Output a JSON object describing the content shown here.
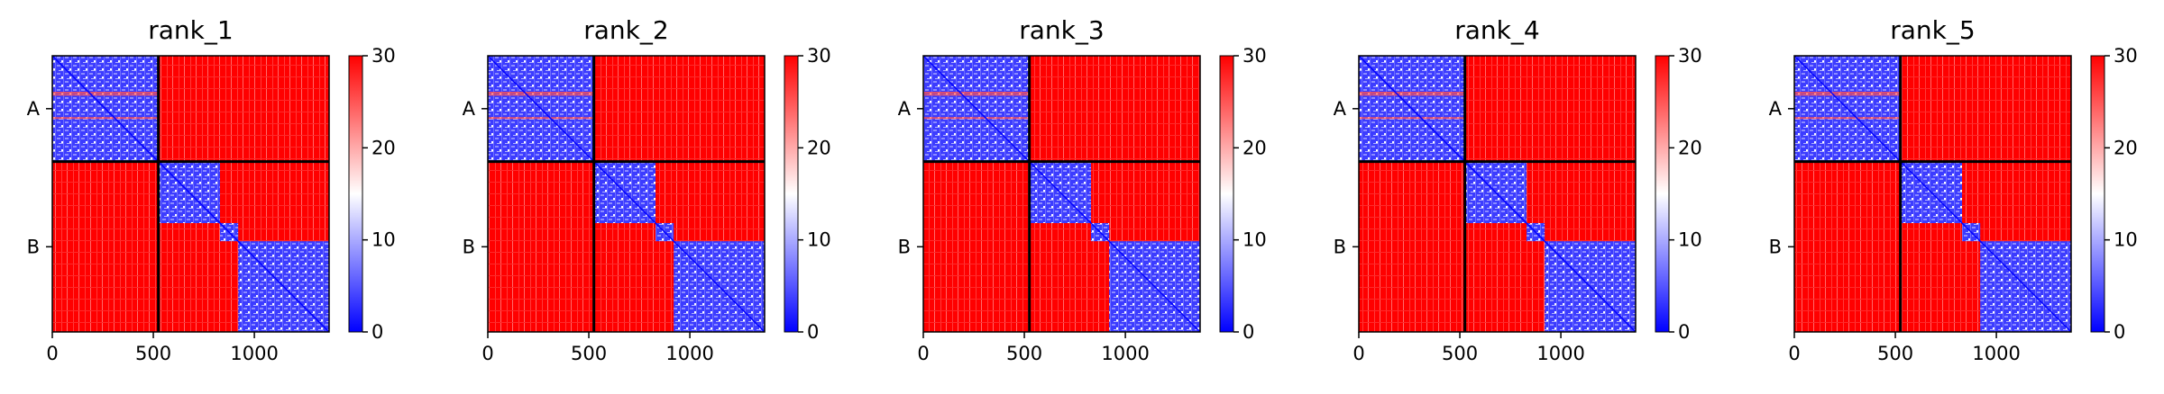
{
  "colors": {
    "low": "#0000ff",
    "mid": "#ffffff",
    "high": "#ff0000",
    "frame": "#000000"
  },
  "chart_data": [
    {
      "type": "heatmap",
      "title": "rank_1",
      "xticks": [
        "0",
        "500",
        "1000"
      ],
      "x_tick_values": [
        0,
        500,
        1000
      ],
      "xlim": [
        0,
        1370
      ],
      "yticks": [
        "A",
        "B"
      ],
      "chains": [
        {
          "name": "A",
          "start": 0,
          "end": 525
        },
        {
          "name": "B",
          "start": 525,
          "end": 1370
        }
      ],
      "colorbar": {
        "min": 0,
        "max": 30,
        "ticks": [
          "0",
          "10",
          "20",
          "30"
        ]
      },
      "domains": [
        [
          0,
          525
        ],
        [
          525,
          830
        ],
        [
          830,
          920
        ],
        [
          920,
          1370
        ]
      ]
    },
    {
      "type": "heatmap",
      "title": "rank_2",
      "xticks": [
        "0",
        "500",
        "1000"
      ],
      "x_tick_values": [
        0,
        500,
        1000
      ],
      "xlim": [
        0,
        1370
      ],
      "yticks": [
        "A",
        "B"
      ],
      "chains": [
        {
          "name": "A",
          "start": 0,
          "end": 525
        },
        {
          "name": "B",
          "start": 525,
          "end": 1370
        }
      ],
      "colorbar": {
        "min": 0,
        "max": 30,
        "ticks": [
          "0",
          "10",
          "20",
          "30"
        ]
      },
      "domains": [
        [
          0,
          525
        ],
        [
          525,
          830
        ],
        [
          830,
          920
        ],
        [
          920,
          1370
        ]
      ]
    },
    {
      "type": "heatmap",
      "title": "rank_3",
      "xticks": [
        "0",
        "500",
        "1000"
      ],
      "x_tick_values": [
        0,
        500,
        1000
      ],
      "xlim": [
        0,
        1370
      ],
      "yticks": [
        "A",
        "B"
      ],
      "chains": [
        {
          "name": "A",
          "start": 0,
          "end": 525
        },
        {
          "name": "B",
          "start": 525,
          "end": 1370
        }
      ],
      "colorbar": {
        "min": 0,
        "max": 30,
        "ticks": [
          "0",
          "10",
          "20",
          "30"
        ]
      },
      "domains": [
        [
          0,
          525
        ],
        [
          525,
          830
        ],
        [
          830,
          920
        ],
        [
          920,
          1370
        ]
      ]
    },
    {
      "type": "heatmap",
      "title": "rank_4",
      "xticks": [
        "0",
        "500",
        "1000"
      ],
      "x_tick_values": [
        0,
        500,
        1000
      ],
      "xlim": [
        0,
        1370
      ],
      "yticks": [
        "A",
        "B"
      ],
      "chains": [
        {
          "name": "A",
          "start": 0,
          "end": 525
        },
        {
          "name": "B",
          "start": 525,
          "end": 1370
        }
      ],
      "colorbar": {
        "min": 0,
        "max": 30,
        "ticks": [
          "0",
          "10",
          "20",
          "30"
        ]
      },
      "domains": [
        [
          0,
          525
        ],
        [
          525,
          830
        ],
        [
          830,
          920
        ],
        [
          920,
          1370
        ]
      ]
    },
    {
      "type": "heatmap",
      "title": "rank_5",
      "xticks": [
        "0",
        "500",
        "1000"
      ],
      "x_tick_values": [
        0,
        500,
        1000
      ],
      "xlim": [
        0,
        1370
      ],
      "yticks": [
        "A",
        "B"
      ],
      "chains": [
        {
          "name": "A",
          "start": 0,
          "end": 525
        },
        {
          "name": "B",
          "start": 525,
          "end": 1370
        }
      ],
      "colorbar": {
        "min": 0,
        "max": 30,
        "ticks": [
          "0",
          "10",
          "20",
          "30"
        ]
      },
      "domains": [
        [
          0,
          525
        ],
        [
          525,
          830
        ],
        [
          830,
          920
        ],
        [
          920,
          1370
        ]
      ]
    }
  ]
}
